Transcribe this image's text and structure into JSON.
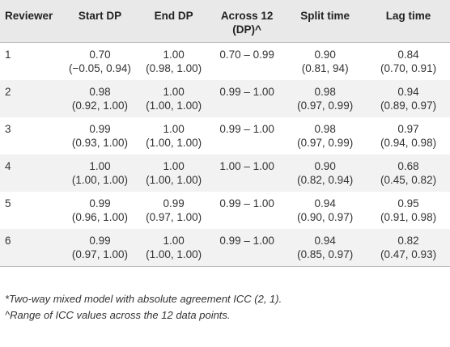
{
  "table": {
    "headers": [
      "Reviewer",
      "Start DP",
      "End DP",
      "Across 12 (DP)^",
      "Split time",
      "Lag time"
    ],
    "rows": [
      {
        "reviewer": "1",
        "start_dp": [
          "0.70",
          "(−0.05, 0.94)"
        ],
        "end_dp": [
          "1.00",
          "(0.98, 1.00)"
        ],
        "across": "0.70 – 0.99",
        "split_time": [
          "0.90",
          "(0.81, 94)"
        ],
        "lag_time": [
          "0.84",
          "(0.70, 0.91)"
        ]
      },
      {
        "reviewer": "2",
        "start_dp": [
          "0.98",
          "(0.92, 1.00)"
        ],
        "end_dp": [
          "1.00",
          "(1.00, 1.00)"
        ],
        "across": "0.99 – 1.00",
        "split_time": [
          "0.98",
          "(0.97, 0.99)"
        ],
        "lag_time": [
          "0.94",
          "(0.89, 0.97)"
        ]
      },
      {
        "reviewer": "3",
        "start_dp": [
          "0.99",
          "(0.93, 1.00)"
        ],
        "end_dp": [
          "1.00",
          "(1.00, 1.00)"
        ],
        "across": "0.99 – 1.00",
        "split_time": [
          "0.98",
          "(0.97, 0.99)"
        ],
        "lag_time": [
          "0.97",
          "(0.94, 0.98)"
        ]
      },
      {
        "reviewer": "4",
        "start_dp": [
          "1.00",
          "(1.00, 1.00)"
        ],
        "end_dp": [
          "1.00",
          "(1.00, 1.00)"
        ],
        "across": "1.00 – 1.00",
        "split_time": [
          "0.90",
          "(0.82, 0.94)"
        ],
        "lag_time": [
          "0.68",
          "(0.45, 0.82)"
        ]
      },
      {
        "reviewer": "5",
        "start_dp": [
          "0.99",
          "(0.96, 1.00)"
        ],
        "end_dp": [
          "0.99",
          "(0.97, 1.00)"
        ],
        "across": "0.99 – 1.00",
        "split_time": [
          "0.94",
          "(0.90, 0.97)"
        ],
        "lag_time": [
          "0.95",
          "(0.91, 0.98)"
        ]
      },
      {
        "reviewer": "6",
        "start_dp": [
          "0.99",
          "(0.97, 1.00)"
        ],
        "end_dp": [
          "1.00",
          "(1.00, 1.00)"
        ],
        "across": "0.99 – 1.00",
        "split_time": [
          "0.94",
          "(0.85, 0.97)"
        ],
        "lag_time": [
          "0.82",
          "(0.47, 0.93)"
        ]
      }
    ]
  },
  "footnotes": [
    "*Two-way mixed model with absolute agreement ICC (2, 1).",
    "^Range of ICC values across the 12 data points."
  ]
}
